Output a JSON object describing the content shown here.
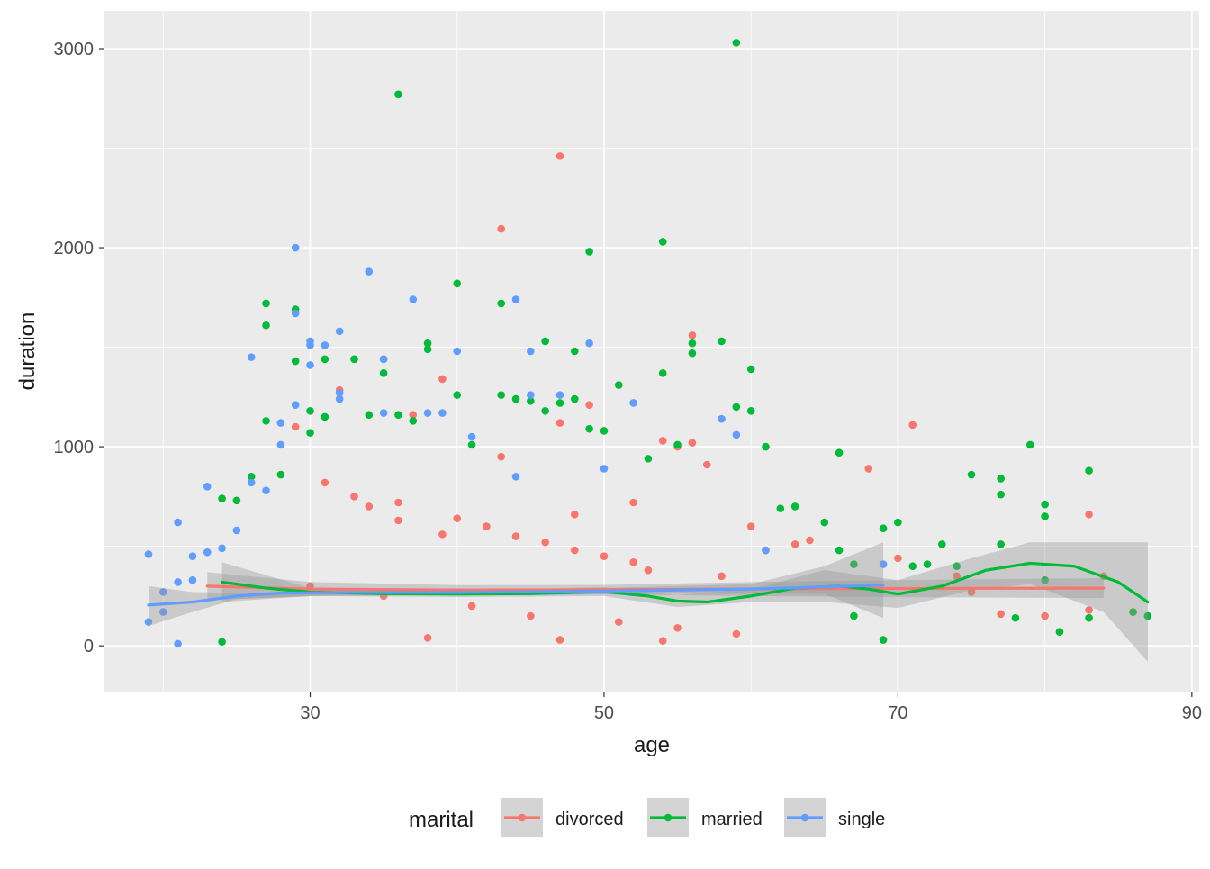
{
  "chart_data": {
    "type": "scatter",
    "xlabel": "age",
    "ylabel": "duration",
    "xlim": [
      16,
      90.5
    ],
    "ylim": [
      -230,
      3190
    ],
    "x_ticks": [
      30,
      50,
      70,
      90
    ],
    "y_ticks": [
      0,
      1000,
      2000,
      3000
    ],
    "x_tick_labels": [
      "30",
      "50",
      "70",
      "90"
    ],
    "y_tick_labels": [
      "0",
      "1000",
      "2000",
      "3000"
    ],
    "grid": true,
    "legend": {
      "title": "marital",
      "position": "bottom",
      "entries": [
        "divorced",
        "married",
        "single"
      ]
    },
    "colors": {
      "panel_bg": "#ebebeb",
      "grid_major": "#ffffff",
      "ribbon": "#999999",
      "legend_key_bg": "#d4d4d4",
      "text": "#4d4d4d",
      "title_text": "#1a1a1a",
      "divorced": "#f8766d",
      "married": "#00ba38",
      "single": "#619cff"
    },
    "series": [
      {
        "name": "divorced",
        "color": "#f8766d",
        "points": [
          [
            29,
            1100
          ],
          [
            32,
            1285
          ],
          [
            37,
            1160
          ],
          [
            39,
            1340
          ],
          [
            43,
            2095
          ],
          [
            47,
            2460
          ],
          [
            49,
            1210
          ],
          [
            47,
            1120
          ],
          [
            54,
            1030
          ],
          [
            55,
            1000
          ],
          [
            56,
            1560
          ],
          [
            56,
            1020
          ],
          [
            57,
            910
          ],
          [
            60,
            600
          ],
          [
            61,
            480
          ],
          [
            63,
            510
          ],
          [
            64,
            530
          ],
          [
            68,
            890
          ],
          [
            70,
            440
          ],
          [
            71,
            1110
          ],
          [
            74,
            350
          ],
          [
            75,
            270
          ],
          [
            77,
            160
          ],
          [
            80,
            150
          ],
          [
            83,
            660
          ],
          [
            83,
            180
          ],
          [
            84,
            350
          ],
          [
            31,
            820
          ],
          [
            33,
            750
          ],
          [
            36,
            720
          ],
          [
            40,
            640
          ],
          [
            42,
            600
          ],
          [
            44,
            550
          ],
          [
            46,
            520
          ],
          [
            48,
            480
          ],
          [
            50,
            450
          ],
          [
            52,
            420
          ],
          [
            53,
            380
          ],
          [
            58,
            350
          ],
          [
            30,
            300
          ],
          [
            35,
            250
          ],
          [
            41,
            200
          ],
          [
            45,
            150
          ],
          [
            51,
            120
          ],
          [
            55,
            90
          ],
          [
            59,
            60
          ],
          [
            38,
            40
          ],
          [
            47,
            30
          ],
          [
            54,
            25
          ],
          [
            34,
            700
          ],
          [
            43,
            950
          ],
          [
            52,
            720
          ],
          [
            36,
            630
          ],
          [
            39,
            560
          ],
          [
            48,
            660
          ]
        ],
        "smooth": [
          [
            23,
            300
          ],
          [
            30,
            285
          ],
          [
            40,
            280
          ],
          [
            50,
            282
          ],
          [
            60,
            286
          ],
          [
            70,
            288
          ],
          [
            84,
            290
          ]
        ],
        "ribbon": [
          [
            23,
            230,
            370
          ],
          [
            30,
            250,
            320
          ],
          [
            40,
            255,
            305
          ],
          [
            50,
            258,
            306
          ],
          [
            60,
            250,
            320
          ],
          [
            70,
            245,
            330
          ],
          [
            84,
            240,
            340
          ]
        ]
      },
      {
        "name": "married",
        "color": "#00ba38",
        "points": [
          [
            24,
            740
          ],
          [
            24,
            20
          ],
          [
            25,
            730
          ],
          [
            26,
            850
          ],
          [
            27,
            1720
          ],
          [
            27,
            1610
          ],
          [
            27,
            1130
          ],
          [
            28,
            860
          ],
          [
            29,
            1690
          ],
          [
            29,
            1430
          ],
          [
            30,
            1180
          ],
          [
            30,
            1070
          ],
          [
            31,
            1440
          ],
          [
            31,
            1150
          ],
          [
            33,
            1440
          ],
          [
            34,
            1160
          ],
          [
            35,
            1440
          ],
          [
            35,
            1370
          ],
          [
            36,
            2770
          ],
          [
            36,
            1160
          ],
          [
            37,
            1130
          ],
          [
            38,
            1520
          ],
          [
            38,
            1490
          ],
          [
            40,
            1820
          ],
          [
            40,
            1260
          ],
          [
            41,
            1010
          ],
          [
            43,
            1720
          ],
          [
            43,
            1260
          ],
          [
            44,
            1240
          ],
          [
            45,
            1230
          ],
          [
            46,
            1530
          ],
          [
            46,
            1180
          ],
          [
            47,
            1220
          ],
          [
            48,
            1480
          ],
          [
            48,
            1240
          ],
          [
            49,
            1980
          ],
          [
            49,
            1090
          ],
          [
            50,
            1080
          ],
          [
            51,
            1310
          ],
          [
            53,
            940
          ],
          [
            54,
            2030
          ],
          [
            54,
            1370
          ],
          [
            55,
            1010
          ],
          [
            56,
            1470
          ],
          [
            56,
            1520
          ],
          [
            58,
            1530
          ],
          [
            59,
            3030
          ],
          [
            59,
            1200
          ],
          [
            60,
            1180
          ],
          [
            60,
            1390
          ],
          [
            61,
            1000
          ],
          [
            62,
            690
          ],
          [
            63,
            700
          ],
          [
            65,
            620
          ],
          [
            66,
            970
          ],
          [
            66,
            480
          ],
          [
            67,
            410
          ],
          [
            67,
            150
          ],
          [
            69,
            590
          ],
          [
            69,
            30
          ],
          [
            70,
            620
          ],
          [
            71,
            400
          ],
          [
            72,
            410
          ],
          [
            73,
            510
          ],
          [
            74,
            400
          ],
          [
            75,
            860
          ],
          [
            77,
            840
          ],
          [
            77,
            760
          ],
          [
            77,
            510
          ],
          [
            78,
            140
          ],
          [
            79,
            1010
          ],
          [
            80,
            710
          ],
          [
            80,
            650
          ],
          [
            80,
            330
          ],
          [
            81,
            70
          ],
          [
            83,
            880
          ],
          [
            83,
            140
          ],
          [
            86,
            170
          ],
          [
            87,
            150
          ]
        ],
        "smooth": [
          [
            24,
            320
          ],
          [
            27,
            290
          ],
          [
            30,
            270
          ],
          [
            35,
            262
          ],
          [
            40,
            260
          ],
          [
            45,
            262
          ],
          [
            50,
            272
          ],
          [
            53,
            250
          ],
          [
            55,
            225
          ],
          [
            57,
            220
          ],
          [
            60,
            250
          ],
          [
            63,
            290
          ],
          [
            66,
            300
          ],
          [
            68,
            285
          ],
          [
            70,
            260
          ],
          [
            73,
            300
          ],
          [
            76,
            380
          ],
          [
            79,
            415
          ],
          [
            82,
            400
          ],
          [
            85,
            320
          ],
          [
            87,
            220
          ]
        ],
        "ribbon": [
          [
            24,
            220,
            420
          ],
          [
            30,
            250,
            290
          ],
          [
            40,
            245,
            275
          ],
          [
            50,
            250,
            295
          ],
          [
            55,
            195,
            255
          ],
          [
            60,
            220,
            285
          ],
          [
            65,
            220,
            380
          ],
          [
            70,
            190,
            330
          ],
          [
            75,
            280,
            440
          ],
          [
            79,
            310,
            520
          ],
          [
            84,
            170,
            520
          ],
          [
            87,
            -80,
            520
          ]
        ]
      },
      {
        "name": "single",
        "color": "#619cff",
        "points": [
          [
            19,
            460
          ],
          [
            19,
            120
          ],
          [
            20,
            270
          ],
          [
            20,
            170
          ],
          [
            21,
            620
          ],
          [
            21,
            320
          ],
          [
            21,
            10
          ],
          [
            22,
            450
          ],
          [
            22,
            330
          ],
          [
            23,
            800
          ],
          [
            23,
            470
          ],
          [
            24,
            490
          ],
          [
            25,
            580
          ],
          [
            26,
            1450
          ],
          [
            26,
            820
          ],
          [
            27,
            780
          ],
          [
            28,
            1010
          ],
          [
            28,
            1120
          ],
          [
            29,
            2000
          ],
          [
            29,
            1670
          ],
          [
            29,
            1210
          ],
          [
            30,
            1530
          ],
          [
            30,
            1510
          ],
          [
            30,
            1410
          ],
          [
            31,
            1510
          ],
          [
            32,
            1580
          ],
          [
            32,
            1270
          ],
          [
            32,
            1240
          ],
          [
            34,
            1880
          ],
          [
            35,
            1440
          ],
          [
            35,
            1170
          ],
          [
            37,
            1740
          ],
          [
            38,
            1170
          ],
          [
            39,
            1170
          ],
          [
            40,
            1480
          ],
          [
            41,
            1050
          ],
          [
            44,
            1740
          ],
          [
            44,
            850
          ],
          [
            45,
            1260
          ],
          [
            45,
            1480
          ],
          [
            47,
            1260
          ],
          [
            49,
            1520
          ],
          [
            50,
            890
          ],
          [
            52,
            1220
          ],
          [
            58,
            1140
          ],
          [
            59,
            1060
          ],
          [
            61,
            480
          ],
          [
            69,
            410
          ]
        ],
        "smooth": [
          [
            19,
            205
          ],
          [
            22,
            220
          ],
          [
            25,
            250
          ],
          [
            28,
            265
          ],
          [
            32,
            268
          ],
          [
            40,
            268
          ],
          [
            50,
            275
          ],
          [
            60,
            285
          ],
          [
            69,
            305
          ]
        ],
        "ribbon": [
          [
            19,
            100,
            300
          ],
          [
            22,
            170,
            270
          ],
          [
            25,
            235,
            265
          ],
          [
            32,
            255,
            280
          ],
          [
            40,
            255,
            280
          ],
          [
            50,
            262,
            290
          ],
          [
            60,
            262,
            310
          ],
          [
            65,
            260,
            400
          ],
          [
            69,
            140,
            520
          ]
        ]
      }
    ]
  }
}
